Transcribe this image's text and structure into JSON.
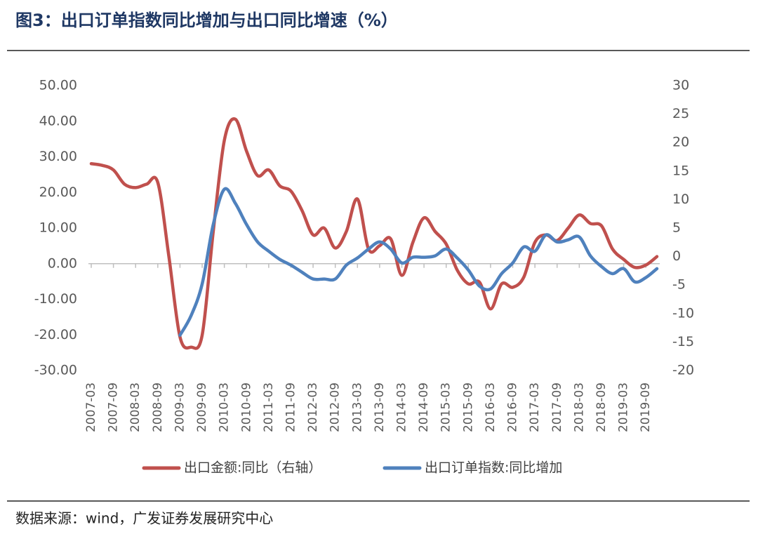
{
  "chart_data": {
    "type": "line",
    "title": "图3：出口订单指数同比增加与出口同比增速（%）",
    "source": "数据来源：wind，广发证券发展研究中心",
    "legend": "bottom",
    "categories": [
      "2007-03",
      null,
      "2007-09",
      null,
      "2008-03",
      null,
      "2008-09",
      null,
      "2009-03",
      null,
      "2009-09",
      null,
      "2010-03",
      null,
      "2010-09",
      null,
      "2011-03",
      null,
      "2011-09",
      null,
      "2012-03",
      null,
      "2012-09",
      null,
      "2013-03",
      null,
      "2013-09",
      null,
      "2014-03",
      null,
      "2014-09",
      null,
      "2015-03",
      null,
      "2015-09",
      null,
      "2016-03",
      null,
      "2016-09",
      null,
      "2017-03",
      null,
      "2017-09",
      null,
      "2018-03",
      null,
      "2018-09",
      null,
      "2019-03",
      null,
      "2019-09",
      null
    ],
    "series": [
      {
        "name": "出口金额:同比（右轴）",
        "color": "#c0504d",
        "axis": "y2",
        "values": [
          16.3,
          16.0,
          15.2,
          12.7,
          12.1,
          12.7,
          13.0,
          0,
          -14.1,
          -15.9,
          -13.8,
          4.4,
          20.4,
          24.1,
          18.5,
          14.2,
          15.2,
          12.4,
          11.5,
          8.1,
          3.8,
          5.0,
          1.5,
          4.4,
          10.1,
          1.3,
          1.9,
          3.1,
          -3.3,
          2.5,
          6.8,
          4.4,
          2.2,
          -2.4,
          -4.8,
          -4.5,
          -9.2,
          -4.8,
          -5.4,
          -3.6,
          2.5,
          3.8,
          2.8,
          5.0,
          7.3,
          5.8,
          5.4,
          1.3,
          -0.5,
          -1.9,
          -1.5,
          0
        ]
      },
      {
        "name": "出口订单指数:同比增加",
        "color": "#4f81bd",
        "values": [
          null,
          null,
          null,
          null,
          null,
          null,
          null,
          null,
          -20.1,
          -14.6,
          -5.7,
          11.0,
          20.9,
          16.9,
          11.0,
          6.1,
          3.5,
          1.2,
          -0.4,
          -2.4,
          -4.3,
          -4.3,
          -4.3,
          -0.4,
          1.6,
          4.1,
          6.1,
          4.1,
          0.2,
          1.8,
          1.8,
          2.2,
          4.1,
          1.6,
          -1.8,
          -6.3,
          -7.1,
          -2.8,
          0.2,
          4.7,
          3.5,
          8.1,
          6.1,
          6.7,
          7.5,
          2.2,
          -0.8,
          -2.8,
          -1.4,
          -5.1,
          -3.9,
          -1.4
        ]
      }
    ],
    "ylim": [
      -30,
      50
    ],
    "yticks": [
      {
        "value": 50,
        "label": "50.00"
      },
      {
        "value": 40,
        "label": "40.00"
      },
      {
        "value": 30,
        "label": "30.00"
      },
      {
        "value": 20,
        "label": "20.00"
      },
      {
        "value": 10,
        "label": "10.00"
      },
      {
        "value": 0,
        "label": "0.00"
      },
      {
        "value": -10,
        "label": "-10.00"
      },
      {
        "value": -20,
        "label": "-20.00"
      },
      {
        "value": -30,
        "label": "-30.00"
      }
    ],
    "y2lim": [
      -20,
      30
    ],
    "y2ticks": [
      30,
      25,
      20,
      15,
      10,
      5,
      0,
      -5,
      -10,
      -15,
      -20
    ]
  }
}
